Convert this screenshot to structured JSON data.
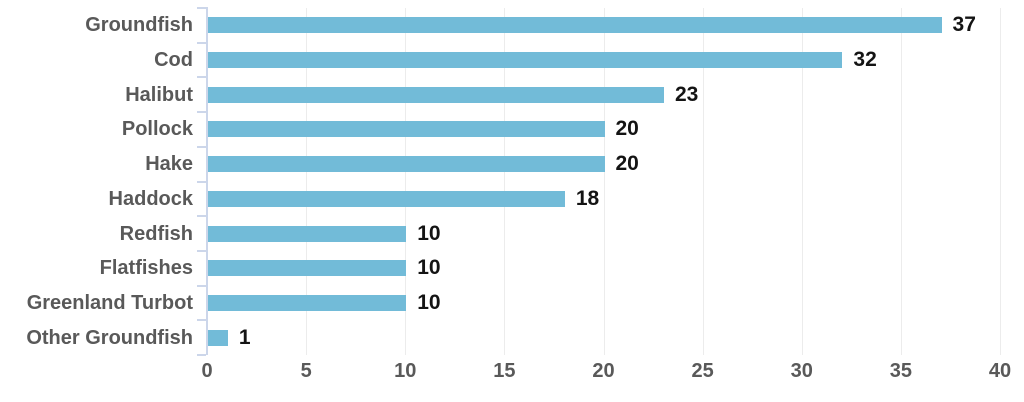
{
  "chart_data": {
    "type": "bar",
    "orientation": "horizontal",
    "title": "",
    "xlabel": "",
    "ylabel": "",
    "categories": [
      "Groundfish",
      "Cod",
      "Halibut",
      "Pollock",
      "Hake",
      "Haddock",
      "Redfish",
      "Flatfishes",
      "Greenland Turbot",
      "Other Groundfish"
    ],
    "values": [
      37,
      32,
      23,
      20,
      20,
      18,
      10,
      10,
      10,
      1
    ],
    "xlim": [
      0,
      40
    ],
    "x_ticks": [
      0,
      5,
      10,
      15,
      20,
      25,
      30,
      35,
      40
    ],
    "grid": true,
    "legend": "none",
    "value_labels_shown": true,
    "colors": {
      "bar": "#72bbd8",
      "category_label": "#595959",
      "value_label": "#141414",
      "axis_tick_label": "#595959",
      "axis_line": "#ccd6ea",
      "gridline": "#ececec",
      "background": "#ffffff"
    }
  }
}
